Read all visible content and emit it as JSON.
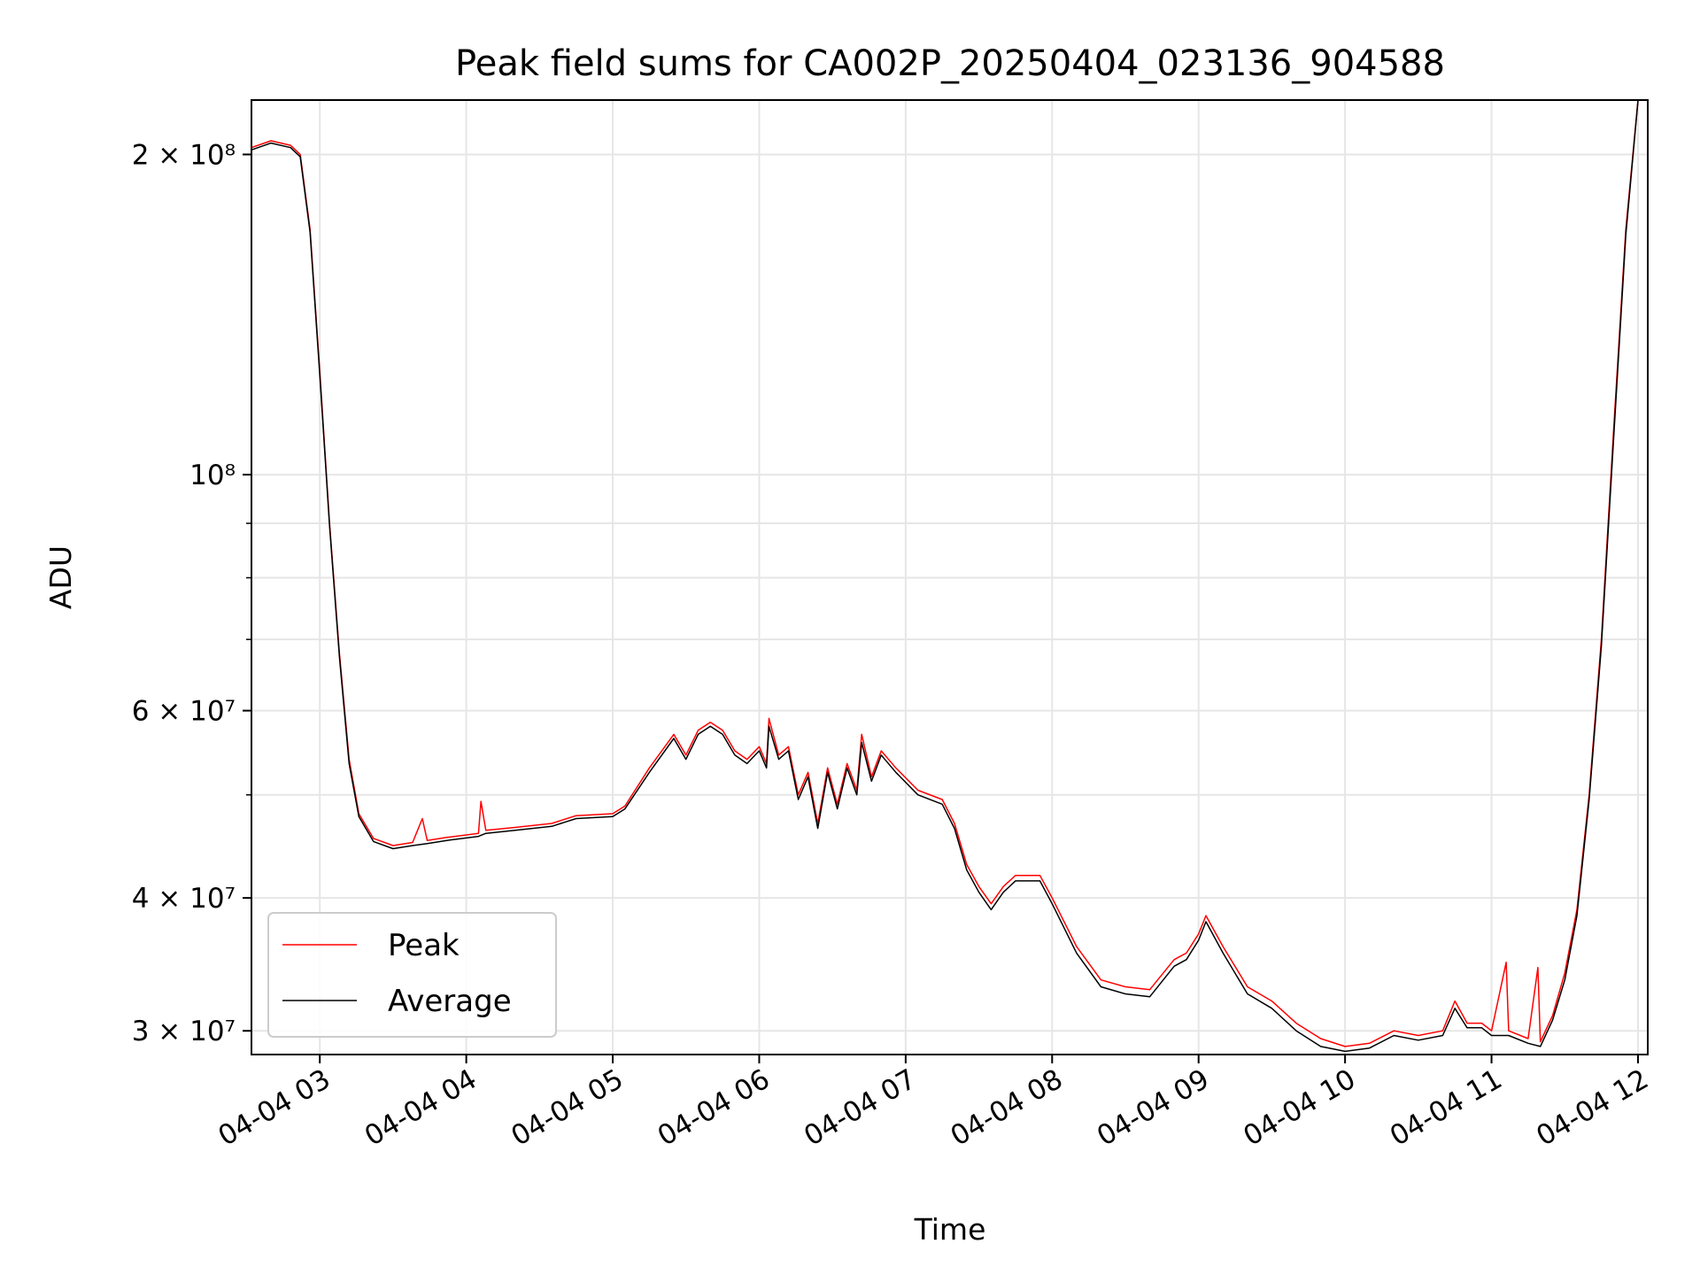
{
  "chart_data": {
    "type": "line",
    "title": "Peak field sums for CA002P_20250404_023136_904588",
    "xlabel": "Time",
    "ylabel": "ADU",
    "xscale": "time",
    "yscale": "log",
    "xlim": [
      "2025-04-04 02:32",
      "2025-04-04 12:04"
    ],
    "ylim": [
      28500000,
      225000000
    ],
    "xticks": [
      {
        "value": "2025-04-04 03:00",
        "label": "04-04 03"
      },
      {
        "value": "2025-04-04 04:00",
        "label": "04-04 04"
      },
      {
        "value": "2025-04-04 05:00",
        "label": "04-04 05"
      },
      {
        "value": "2025-04-04 06:00",
        "label": "04-04 06"
      },
      {
        "value": "2025-04-04 07:00",
        "label": "04-04 07"
      },
      {
        "value": "2025-04-04 08:00",
        "label": "04-04 08"
      },
      {
        "value": "2025-04-04 09:00",
        "label": "04-04 09"
      },
      {
        "value": "2025-04-04 10:00",
        "label": "04-04 10"
      },
      {
        "value": "2025-04-04 11:00",
        "label": "04-04 11"
      },
      {
        "value": "2025-04-04 12:00",
        "label": "04-04 12"
      }
    ],
    "yticks_major": [
      {
        "value": 30000000,
        "label": "3 × 10⁷"
      },
      {
        "value": 40000000,
        "label": "4 × 10⁷"
      },
      {
        "value": 60000000,
        "label": "6 × 10⁷"
      },
      {
        "value": 100000000,
        "label": "10⁸"
      },
      {
        "value": 200000000,
        "label": "2 × 10⁸"
      }
    ],
    "yticks_minor": [
      50000000,
      70000000,
      80000000,
      90000000
    ],
    "grid": true,
    "legend_position": "lower-left",
    "series": [
      {
        "name": "Peak",
        "color": "#ff0000",
        "points": [
          [
            "2025-04-04 02:32",
            203000000
          ],
          [
            "2025-04-04 02:40",
            206000000
          ],
          [
            "2025-04-04 02:48",
            204000000
          ],
          [
            "2025-04-04 02:52",
            200000000
          ],
          [
            "2025-04-04 02:56",
            170000000
          ],
          [
            "2025-04-04 03:00",
            125000000
          ],
          [
            "2025-04-04 03:04",
            90000000
          ],
          [
            "2025-04-04 03:08",
            68000000
          ],
          [
            "2025-04-04 03:12",
            54000000
          ],
          [
            "2025-04-04 03:16",
            48000000
          ],
          [
            "2025-04-04 03:22",
            45500000
          ],
          [
            "2025-04-04 03:30",
            44800000
          ],
          [
            "2025-04-04 03:38",
            45100000
          ],
          [
            "2025-04-04 03:42",
            47500000
          ],
          [
            "2025-04-04 03:44",
            45300000
          ],
          [
            "2025-04-04 03:52",
            45600000
          ],
          [
            "2025-04-04 04:05",
            46000000
          ],
          [
            "2025-04-04 04:06",
            49300000
          ],
          [
            "2025-04-04 04:08",
            46300000
          ],
          [
            "2025-04-04 04:20",
            46600000
          ],
          [
            "2025-04-04 04:35",
            47000000
          ],
          [
            "2025-04-04 04:45",
            47800000
          ],
          [
            "2025-04-04 05:00",
            48000000
          ],
          [
            "2025-04-04 05:05",
            48800000
          ],
          [
            "2025-04-04 05:15",
            53000000
          ],
          [
            "2025-04-04 05:25",
            57000000
          ],
          [
            "2025-04-04 05:30",
            54500000
          ],
          [
            "2025-04-04 05:35",
            57500000
          ],
          [
            "2025-04-04 05:40",
            58500000
          ],
          [
            "2025-04-04 05:45",
            57500000
          ],
          [
            "2025-04-04 05:50",
            55000000
          ],
          [
            "2025-04-04 05:55",
            54000000
          ],
          [
            "2025-04-04 06:00",
            55500000
          ],
          [
            "2025-04-04 06:03",
            53500000
          ],
          [
            "2025-04-04 06:04",
            59000000
          ],
          [
            "2025-04-04 06:08",
            54500000
          ],
          [
            "2025-04-04 06:12",
            55500000
          ],
          [
            "2025-04-04 06:16",
            50000000
          ],
          [
            "2025-04-04 06:20",
            52500000
          ],
          [
            "2025-04-04 06:24",
            47000000
          ],
          [
            "2025-04-04 06:28",
            53000000
          ],
          [
            "2025-04-04 06:32",
            49000000
          ],
          [
            "2025-04-04 06:36",
            53500000
          ],
          [
            "2025-04-04 06:40",
            50500000
          ],
          [
            "2025-04-04 06:42",
            57000000
          ],
          [
            "2025-04-04 06:46",
            52000000
          ],
          [
            "2025-04-04 06:50",
            55000000
          ],
          [
            "2025-04-04 06:56",
            53000000
          ],
          [
            "2025-04-04 07:05",
            50500000
          ],
          [
            "2025-04-04 07:15",
            49500000
          ],
          [
            "2025-04-04 07:20",
            47000000
          ],
          [
            "2025-04-04 07:25",
            43000000
          ],
          [
            "2025-04-04 07:30",
            41000000
          ],
          [
            "2025-04-04 07:35",
            39500000
          ],
          [
            "2025-04-04 07:40",
            41000000
          ],
          [
            "2025-04-04 07:45",
            42000000
          ],
          [
            "2025-04-04 07:55",
            42000000
          ],
          [
            "2025-04-04 08:00",
            40000000
          ],
          [
            "2025-04-04 08:10",
            36000000
          ],
          [
            "2025-04-04 08:20",
            33500000
          ],
          [
            "2025-04-04 08:30",
            33000000
          ],
          [
            "2025-04-04 08:40",
            32800000
          ],
          [
            "2025-04-04 08:50",
            35000000
          ],
          [
            "2025-04-04 08:55",
            35500000
          ],
          [
            "2025-04-04 09:00",
            37000000
          ],
          [
            "2025-04-04 09:03",
            38500000
          ],
          [
            "2025-04-04 09:10",
            36000000
          ],
          [
            "2025-04-04 09:20",
            33000000
          ],
          [
            "2025-04-04 09:30",
            32000000
          ],
          [
            "2025-04-04 09:40",
            30500000
          ],
          [
            "2025-04-04 09:50",
            29500000
          ],
          [
            "2025-04-04 10:00",
            29000000
          ],
          [
            "2025-04-04 10:10",
            29200000
          ],
          [
            "2025-04-04 10:20",
            30000000
          ],
          [
            "2025-04-04 10:30",
            29700000
          ],
          [
            "2025-04-04 10:40",
            30000000
          ],
          [
            "2025-04-04 10:45",
            32000000
          ],
          [
            "2025-04-04 10:50",
            30500000
          ],
          [
            "2025-04-04 10:56",
            30500000
          ],
          [
            "2025-04-04 11:00",
            30000000
          ],
          [
            "2025-04-04 11:06",
            34800000
          ],
          [
            "2025-04-04 11:07",
            30000000
          ],
          [
            "2025-04-04 11:15",
            29500000
          ],
          [
            "2025-04-04 11:19",
            34400000
          ],
          [
            "2025-04-04 11:20",
            29300000
          ],
          [
            "2025-04-04 11:25",
            31000000
          ],
          [
            "2025-04-04 11:30",
            34000000
          ],
          [
            "2025-04-04 11:35",
            39000000
          ],
          [
            "2025-04-04 11:40",
            50000000
          ],
          [
            "2025-04-04 11:45",
            70000000
          ],
          [
            "2025-04-04 11:50",
            110000000
          ],
          [
            "2025-04-04 11:55",
            170000000
          ],
          [
            "2025-04-04 12:00",
            225000000
          ]
        ]
      },
      {
        "name": "Average",
        "color": "#000000",
        "points": [
          [
            "2025-04-04 02:32",
            202000000
          ],
          [
            "2025-04-04 02:40",
            205000000
          ],
          [
            "2025-04-04 02:48",
            203000000
          ],
          [
            "2025-04-04 02:52",
            199000000
          ],
          [
            "2025-04-04 02:56",
            169000000
          ],
          [
            "2025-04-04 03:00",
            124000000
          ],
          [
            "2025-04-04 03:04",
            89500000
          ],
          [
            "2025-04-04 03:08",
            67500000
          ],
          [
            "2025-04-04 03:12",
            53500000
          ],
          [
            "2025-04-04 03:16",
            47700000
          ],
          [
            "2025-04-04 03:22",
            45200000
          ],
          [
            "2025-04-04 03:30",
            44500000
          ],
          [
            "2025-04-04 03:38",
            44800000
          ],
          [
            "2025-04-04 03:44",
            45000000
          ],
          [
            "2025-04-04 03:52",
            45300000
          ],
          [
            "2025-04-04 04:05",
            45700000
          ],
          [
            "2025-04-04 04:08",
            46000000
          ],
          [
            "2025-04-04 04:20",
            46300000
          ],
          [
            "2025-04-04 04:35",
            46700000
          ],
          [
            "2025-04-04 04:45",
            47500000
          ],
          [
            "2025-04-04 05:00",
            47700000
          ],
          [
            "2025-04-04 05:05",
            48500000
          ],
          [
            "2025-04-04 05:15",
            52500000
          ],
          [
            "2025-04-04 05:25",
            56500000
          ],
          [
            "2025-04-04 05:30",
            54000000
          ],
          [
            "2025-04-04 05:35",
            57000000
          ],
          [
            "2025-04-04 05:40",
            58000000
          ],
          [
            "2025-04-04 05:45",
            57000000
          ],
          [
            "2025-04-04 05:50",
            54500000
          ],
          [
            "2025-04-04 05:55",
            53500000
          ],
          [
            "2025-04-04 06:00",
            55000000
          ],
          [
            "2025-04-04 06:03",
            53000000
          ],
          [
            "2025-04-04 06:04",
            58000000
          ],
          [
            "2025-04-04 06:08",
            54000000
          ],
          [
            "2025-04-04 06:12",
            55000000
          ],
          [
            "2025-04-04 06:16",
            49500000
          ],
          [
            "2025-04-04 06:20",
            52000000
          ],
          [
            "2025-04-04 06:24",
            46500000
          ],
          [
            "2025-04-04 06:28",
            52500000
          ],
          [
            "2025-04-04 06:32",
            48500000
          ],
          [
            "2025-04-04 06:36",
            53000000
          ],
          [
            "2025-04-04 06:40",
            50000000
          ],
          [
            "2025-04-04 06:42",
            56000000
          ],
          [
            "2025-04-04 06:46",
            51500000
          ],
          [
            "2025-04-04 06:50",
            54500000
          ],
          [
            "2025-04-04 06:56",
            52500000
          ],
          [
            "2025-04-04 07:05",
            50000000
          ],
          [
            "2025-04-04 07:15",
            49000000
          ],
          [
            "2025-04-04 07:20",
            46500000
          ],
          [
            "2025-04-04 07:25",
            42500000
          ],
          [
            "2025-04-04 07:30",
            40500000
          ],
          [
            "2025-04-04 07:35",
            39000000
          ],
          [
            "2025-04-04 07:40",
            40500000
          ],
          [
            "2025-04-04 07:45",
            41500000
          ],
          [
            "2025-04-04 07:55",
            41500000
          ],
          [
            "2025-04-04 08:00",
            39500000
          ],
          [
            "2025-04-04 08:10",
            35500000
          ],
          [
            "2025-04-04 08:20",
            33000000
          ],
          [
            "2025-04-04 08:30",
            32500000
          ],
          [
            "2025-04-04 08:40",
            32300000
          ],
          [
            "2025-04-04 08:50",
            34500000
          ],
          [
            "2025-04-04 08:55",
            35000000
          ],
          [
            "2025-04-04 09:00",
            36500000
          ],
          [
            "2025-04-04 09:03",
            38000000
          ],
          [
            "2025-04-04 09:10",
            35500000
          ],
          [
            "2025-04-04 09:20",
            32500000
          ],
          [
            "2025-04-04 09:30",
            31500000
          ],
          [
            "2025-04-04 09:40",
            30000000
          ],
          [
            "2025-04-04 09:50",
            29000000
          ],
          [
            "2025-04-04 10:00",
            28700000
          ],
          [
            "2025-04-04 10:10",
            28900000
          ],
          [
            "2025-04-04 10:20",
            29700000
          ],
          [
            "2025-04-04 10:30",
            29400000
          ],
          [
            "2025-04-04 10:40",
            29700000
          ],
          [
            "2025-04-04 10:45",
            31500000
          ],
          [
            "2025-04-04 10:50",
            30200000
          ],
          [
            "2025-04-04 10:56",
            30200000
          ],
          [
            "2025-04-04 11:00",
            29700000
          ],
          [
            "2025-04-04 11:07",
            29700000
          ],
          [
            "2025-04-04 11:15",
            29200000
          ],
          [
            "2025-04-04 11:20",
            29000000
          ],
          [
            "2025-04-04 11:25",
            30700000
          ],
          [
            "2025-04-04 11:30",
            33500000
          ],
          [
            "2025-04-04 11:35",
            38500000
          ],
          [
            "2025-04-04 11:40",
            49500000
          ],
          [
            "2025-04-04 11:45",
            69000000
          ],
          [
            "2025-04-04 11:50",
            108000000
          ],
          [
            "2025-04-04 11:55",
            168000000
          ],
          [
            "2025-04-04 12:00",
            225000000
          ]
        ]
      }
    ]
  }
}
